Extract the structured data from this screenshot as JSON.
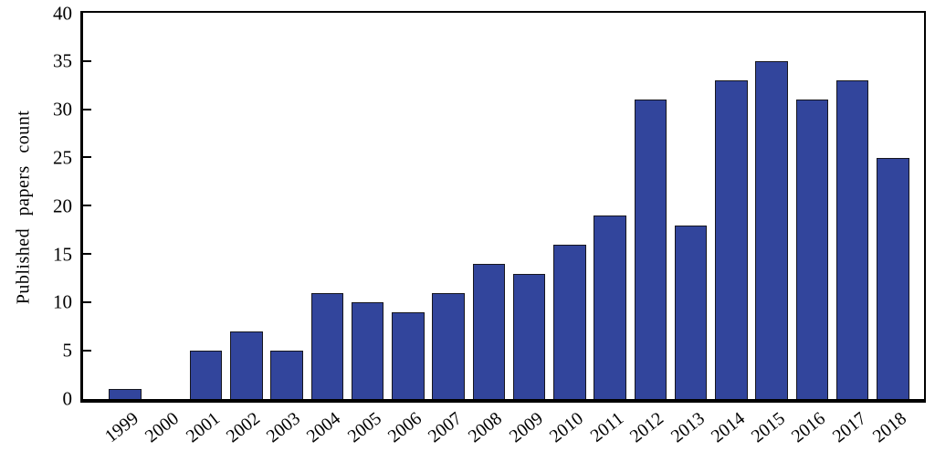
{
  "chart_data": {
    "type": "bar",
    "title": "",
    "xlabel": "",
    "ylabel": "Published papers count",
    "categories": [
      "1999",
      "2000",
      "2001",
      "2002",
      "2003",
      "2004",
      "2005",
      "2006",
      "2007",
      "2008",
      "2009",
      "2010",
      "2011",
      "2012",
      "2013",
      "2014",
      "2015",
      "2016",
      "2017",
      "2018"
    ],
    "values": [
      1,
      0,
      5,
      7,
      5,
      11,
      10,
      9,
      11,
      14,
      13,
      16,
      19,
      31,
      18,
      33,
      35,
      31,
      33,
      25
    ],
    "ylim": [
      0,
      40
    ],
    "yticks": [
      0,
      5,
      10,
      15,
      20,
      25,
      30,
      35,
      40
    ],
    "grid": false,
    "legend": null,
    "bar_color": "#32459c",
    "bar_edge_color": "#16161f",
    "axis_color": "#000000",
    "x_label_rotation_deg": -38
  }
}
